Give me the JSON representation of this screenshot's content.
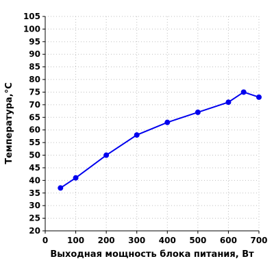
{
  "chart_data": {
    "type": "line",
    "title": "",
    "xlabel": "Выходная мощность блока питания, Вт",
    "ylabel": "Температура,°C",
    "xlim": [
      0,
      700
    ],
    "ylim": [
      20,
      105
    ],
    "x_ticks": [
      0,
      100,
      200,
      300,
      400,
      500,
      600,
      700
    ],
    "y_ticks": [
      20,
      25,
      30,
      35,
      40,
      45,
      50,
      55,
      60,
      65,
      70,
      75,
      80,
      85,
      90,
      95,
      100,
      105
    ],
    "x_tick_labels": [
      "0",
      "100",
      "200",
      "300",
      "400",
      "500",
      "600",
      "700"
    ],
    "y_tick_labels": [
      "20",
      "25",
      "30",
      "35",
      "40",
      "45",
      "50",
      "55",
      "60",
      "65",
      "70",
      "75",
      "80",
      "85",
      "90",
      "95",
      "100",
      "105"
    ],
    "grid": true,
    "legend": "none",
    "series": [
      {
        "color": "#0000ee",
        "x": [
          50,
          100,
          200,
          300,
          400,
          500,
          600,
          650,
          700
        ],
        "y": [
          37,
          41,
          50,
          58,
          63,
          67,
          71,
          75,
          73
        ]
      }
    ]
  }
}
